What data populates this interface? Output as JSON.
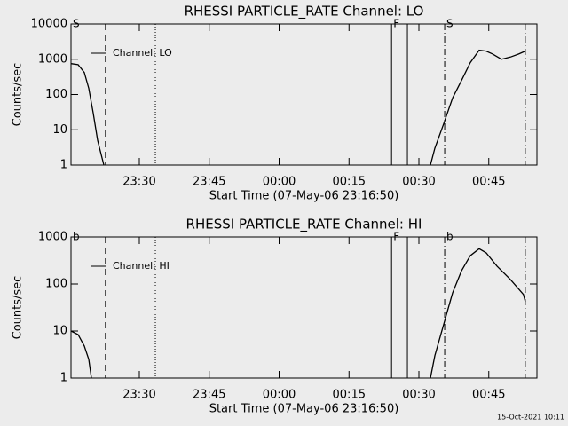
{
  "chart_data": [
    {
      "type": "line",
      "title": "RHESSI PARTICLE_RATE Channel: LO",
      "xlabel": "Start Time (07-May-06 23:16:50)",
      "ylabel": "Counts/sec",
      "x": [
        -1.5,
        0.02,
        1.36,
        2.31,
        3.26,
        4.21,
        5.55,
        40,
        75.64,
        76.6,
        78.5,
        80.4,
        82.3,
        84.2,
        86.1,
        87.6,
        89.0,
        90.9,
        92.8,
        94.6,
        96.0
      ],
      "series": [
        {
          "name": "Channel: LO",
          "color": "#000000",
          "values": [
            750,
            700,
            420,
            150,
            30,
            5,
            1,
            null,
            1,
            3,
            15,
            80,
            250,
            800,
            1800,
            1700,
            1400,
            1000,
            1150,
            1400,
            1700
          ]
        }
      ],
      "xlim": [
        -1.5,
        98.5
      ],
      "ylim": [
        1,
        10000
      ],
      "log_y": true,
      "xticks": [
        {
          "value": 13.167,
          "label": "23:30"
        },
        {
          "value": 28.167,
          "label": "23:45"
        },
        {
          "value": 43.167,
          "label": "00:00"
        },
        {
          "value": 58.167,
          "label": "00:15"
        },
        {
          "value": 73.167,
          "label": "00:30"
        },
        {
          "value": 88.167,
          "label": "00:45"
        }
      ],
      "yticks": [
        1,
        10,
        100,
        1000,
        10000
      ],
      "markers": [
        {
          "x": 5.9,
          "style": "dashed"
        },
        {
          "x": 16.6,
          "style": "dotted"
        },
        {
          "x": 67.3,
          "style": "solid"
        },
        {
          "x": 70.7,
          "style": "solid"
        },
        {
          "x": 78.7,
          "style": "dashdot"
        },
        {
          "x": 96.0,
          "style": "dashdot"
        }
      ],
      "annotations": [
        {
          "text": "S",
          "x": -1.5
        },
        {
          "text": "F",
          "x": 67.3
        },
        {
          "text": "S",
          "x": 78.7
        }
      ]
    },
    {
      "type": "line",
      "title": "RHESSI PARTICLE_RATE Channel: HI",
      "xlabel": "Start Time (07-May-06 23:16:50)",
      "ylabel": "Counts/sec",
      "x": [
        -1.5,
        0.02,
        1.36,
        2.31,
        2.88,
        40,
        75.64,
        76.6,
        78.5,
        80.4,
        82.3,
        84.2,
        86.1,
        87.6,
        89.9,
        92.8,
        95.6,
        96.0
      ],
      "series": [
        {
          "name": "Channel: HI",
          "color": "#000000",
          "values": [
            10,
            8.4,
            4.8,
            2.5,
            1,
            null,
            1,
            3,
            14,
            65,
            190,
            400,
            560,
            460,
            240,
            125,
            60,
            42
          ]
        }
      ],
      "xlim": [
        -1.5,
        98.5
      ],
      "ylim": [
        1,
        1000
      ],
      "log_y": true,
      "xticks": [
        {
          "value": 13.167,
          "label": "23:30"
        },
        {
          "value": 28.167,
          "label": "23:45"
        },
        {
          "value": 43.167,
          "label": "00:00"
        },
        {
          "value": 58.167,
          "label": "00:15"
        },
        {
          "value": 73.167,
          "label": "00:30"
        },
        {
          "value": 88.167,
          "label": "00:45"
        }
      ],
      "yticks": [
        1,
        10,
        100,
        1000
      ],
      "markers": [
        {
          "x": 5.9,
          "style": "dashed"
        },
        {
          "x": 16.6,
          "style": "dotted"
        },
        {
          "x": 67.3,
          "style": "solid"
        },
        {
          "x": 70.7,
          "style": "solid"
        },
        {
          "x": 78.7,
          "style": "dashdot"
        },
        {
          "x": 96.0,
          "style": "dashdot"
        }
      ],
      "annotations": [
        {
          "text": "b",
          "x": -1.5
        },
        {
          "text": "F",
          "x": 67.3
        },
        {
          "text": "b",
          "x": 78.7
        }
      ]
    }
  ],
  "footer": "15-Oct-2021 10:11"
}
